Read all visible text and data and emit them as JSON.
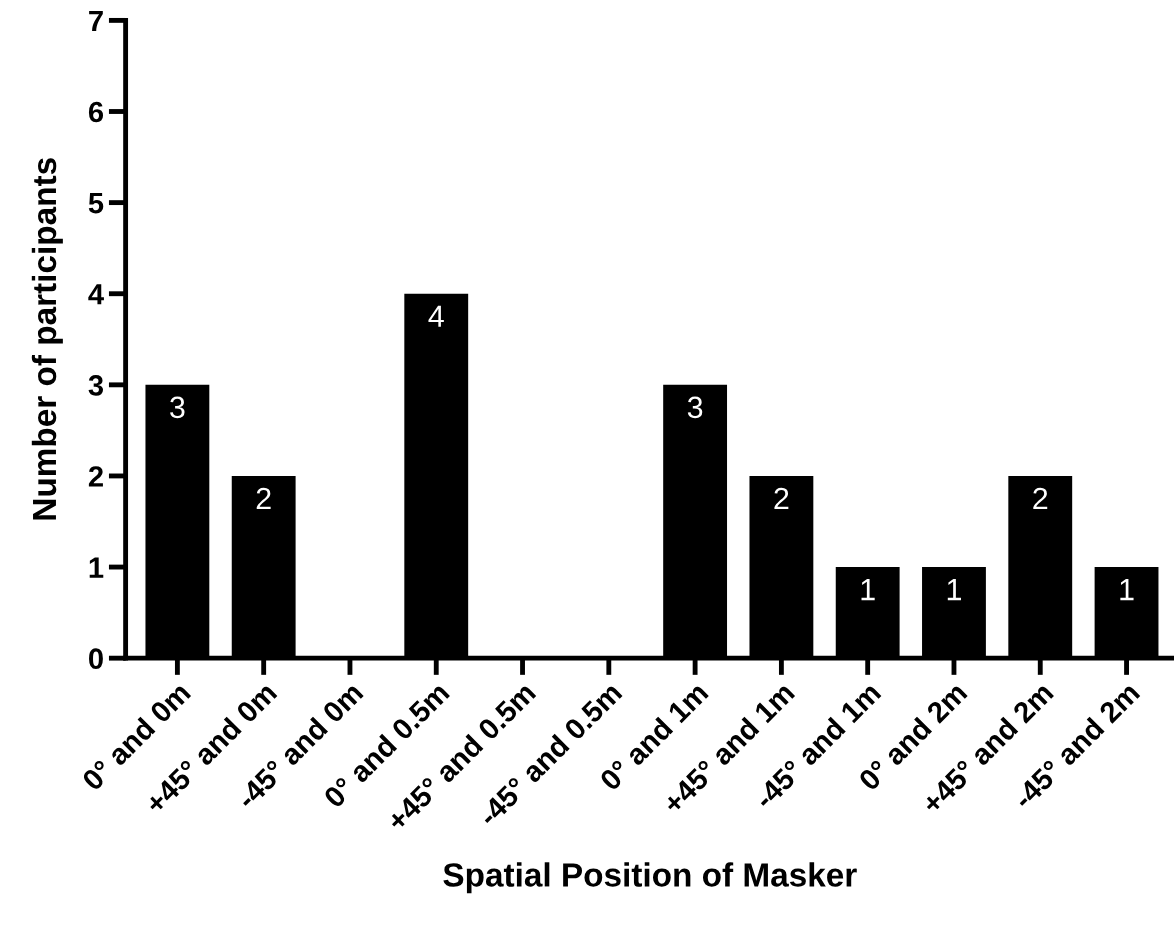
{
  "chart_data": {
    "type": "bar",
    "xlabel": "Spatial Position of Masker",
    "ylabel": "Number of participants",
    "categories": [
      "0° and 0m",
      "+45° and 0m",
      "-45° and 0m",
      "0° and 0.5m",
      "+45° and 0.5m",
      "-45° and 0.5m",
      "0° and 1m",
      "+45° and 1m",
      "-45° and 1m",
      "0° and 2m",
      "+45° and 2m",
      "-45° and 2m"
    ],
    "values": [
      3,
      2,
      0,
      4,
      0,
      0,
      3,
      2,
      1,
      1,
      2,
      1
    ],
    "value_labels": [
      "3",
      "2",
      null,
      "4",
      null,
      null,
      "3",
      "2",
      "1",
      "1",
      "2",
      "1"
    ],
    "color": "#000000",
    "ylim": [
      0,
      7
    ],
    "yticks": [
      0,
      1,
      2,
      3,
      4,
      5,
      6,
      7
    ],
    "grid": false
  }
}
